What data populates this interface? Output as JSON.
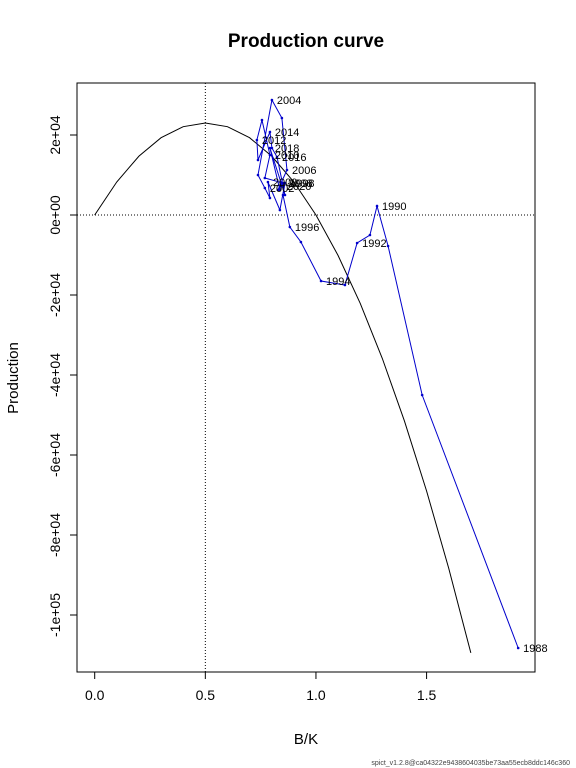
{
  "chart_data": {
    "type": "line",
    "title": "Production curve",
    "xlabel": "B/K",
    "ylabel": "Production",
    "footer": "spict_v1.2.8@ca04322e9438604035be73aa55ecb8ddc146c360",
    "xlim": [
      -0.08,
      1.99
    ],
    "ylim": [
      -114250,
      33000
    ],
    "xticks": [
      {
        "value": 0,
        "label": "0.0"
      },
      0.5,
      {
        "value": 1,
        "label": "1.0"
      },
      1.5
    ],
    "yticks": [
      {
        "value": 20000,
        "label": "2e+04"
      },
      {
        "value": 0,
        "label": "0e+00"
      },
      {
        "value": -20000,
        "label": "-2e+04"
      },
      {
        "value": -40000,
        "label": "-4e+04"
      },
      {
        "value": -60000,
        "label": "-6e+04"
      },
      {
        "value": -80000,
        "label": "-8e+04"
      },
      {
        "value": -100000,
        "label": "-1e+05"
      }
    ],
    "vline": 0.5,
    "hline": 0,
    "series": [
      {
        "color": "#000000",
        "x": [
          0,
          0.1,
          0.2,
          0.3,
          0.4,
          0.5,
          0.6,
          0.7,
          0.8,
          0.9,
          1.0,
          1.1,
          1.2,
          1.3,
          1.4,
          1.5,
          1.6,
          1.7
        ],
        "values": [
          0,
          8280,
          14720,
          19320,
          22080,
          23000,
          22080,
          19320,
          14720,
          8280,
          0,
          -10120,
          -22080,
          -35880,
          -51520,
          -69000,
          -88320,
          -109480
        ]
      },
      {
        "color": "#0000cc",
        "points": true,
        "x": [
          1.914,
          1.48,
          1.326,
          1.276,
          1.244,
          1.186,
          1.131,
          1.023,
          0.932,
          0.882,
          0.851,
          0.86,
          0.837,
          0.783,
          0.792,
          0.769,
          0.738,
          0.801,
          0.846,
          0.869,
          0.828,
          0.851,
          0.769,
          0.792,
          0.756,
          0.733,
          0.738,
          0.792,
          0.801,
          0.824,
          0.86,
          0.792,
          0.837,
          0.846
        ],
        "values": [
          -108250,
          -45000,
          -7750,
          2250,
          -5000,
          -7000,
          -17500,
          -16500,
          -6750,
          -3000,
          5000,
          8000,
          1250,
          8250,
          4250,
          6750,
          10000,
          28750,
          24250,
          11250,
          6250,
          8000,
          9250,
          15000,
          23750,
          18750,
          13750,
          20750,
          16750,
          14500,
          5000,
          16750,
          6250,
          7250
        ],
        "labels": [
          "1988",
          null,
          null,
          "1990",
          null,
          "1992",
          null,
          "1994",
          null,
          "1996",
          null,
          "1998",
          null,
          "2000",
          null,
          "2002",
          null,
          "2004",
          null,
          "2006",
          null,
          "2008",
          null,
          "2010",
          null,
          "2012",
          null,
          "2014",
          null,
          "2016",
          null,
          "2018",
          null,
          "2020"
        ]
      }
    ]
  }
}
